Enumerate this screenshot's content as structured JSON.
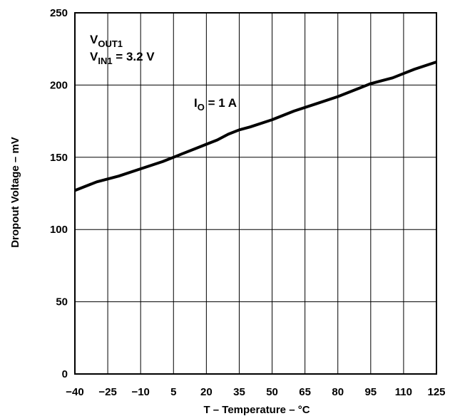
{
  "chart_data": {
    "type": "line",
    "xlabel": "T – Temperature – °C",
    "ylabel": "Dropout Voltage – mV",
    "xlim": [
      -40,
      125
    ],
    "ylim": [
      0,
      250
    ],
    "x_ticks": [
      -40,
      -25,
      -10,
      5,
      20,
      35,
      50,
      65,
      80,
      95,
      110,
      125
    ],
    "x_tick_labels": [
      "−40",
      "−25",
      "−10",
      "5",
      "20",
      "35",
      "50",
      "65",
      "80",
      "95",
      "110",
      "125"
    ],
    "y_ticks": [
      0,
      50,
      100,
      150,
      200,
      250
    ],
    "y_tick_labels": [
      "0",
      "50",
      "100",
      "150",
      "200",
      "250"
    ],
    "grid": true,
    "series": [
      {
        "name": "IO = 1 A",
        "x": [
          -40,
          -30,
          -20,
          -10,
          0,
          5,
          10,
          15,
          20,
          25,
          30,
          35,
          40,
          50,
          60,
          70,
          80,
          90,
          95,
          100,
          105,
          110,
          115,
          125
        ],
        "values": [
          127,
          133,
          137,
          142,
          147,
          150,
          153,
          156,
          159,
          162,
          166,
          169,
          171,
          176,
          182,
          187,
          192,
          198,
          201,
          203,
          205,
          208,
          211,
          216
        ]
      }
    ],
    "annotations": {
      "vout_main": "V",
      "vout_sub": "OUT1",
      "vin_main": "V",
      "vin_sub": "IN1",
      "vin_value": " = 3.2 V",
      "io_main": "I",
      "io_sub": "O",
      "io_value": " = 1 A"
    }
  }
}
